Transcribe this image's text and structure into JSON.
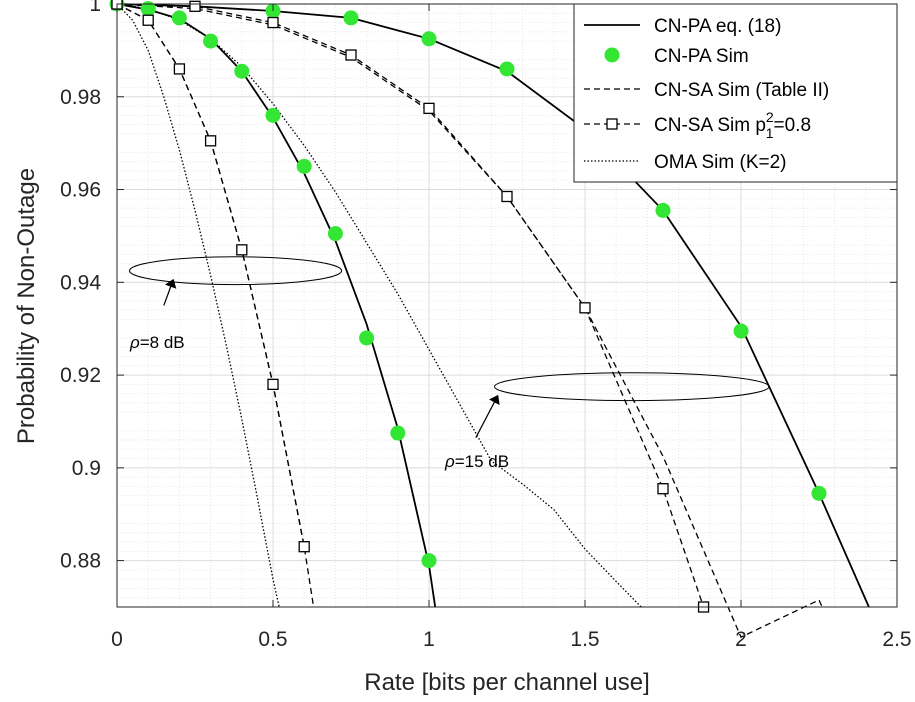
{
  "chart_data": {
    "type": "line",
    "xlabel": "Rate [bits per channel use]",
    "ylabel": "Probability of Non-Outage",
    "xlim": [
      0,
      2.5
    ],
    "ylim": [
      0.87,
      1.0
    ],
    "xticks": [
      0,
      0.5,
      1,
      1.5,
      2,
      2.5
    ],
    "xtick_labels": [
      "0",
      "0.5",
      "1",
      "1.5",
      "2",
      "2.5"
    ],
    "yticks": [
      0.88,
      0.9,
      0.92,
      0.94,
      0.96,
      0.98,
      1.0
    ],
    "ytick_labels": [
      "0.88",
      "0.9",
      "0.92",
      "0.94",
      "0.96",
      "0.98",
      "1"
    ],
    "grid": true,
    "minor_grid": true,
    "legend_position": "top-right",
    "legend": [
      {
        "label": "CN-PA eq. (18)",
        "style": "solid"
      },
      {
        "label": "CN-PA Sim",
        "style": "marker-circle",
        "color": "#33e633"
      },
      {
        "label": "CN-SA Sim (Table II)",
        "style": "dashed"
      },
      {
        "label_main": "CN-SA Sim p",
        "label_sup": "2",
        "label_sub": "1",
        "label_tail": "=0.8",
        "style": "dashed-square"
      },
      {
        "label": "OMA Sim (K=2)",
        "style": "dotted"
      }
    ],
    "series": [
      {
        "group": "rho=8 dB",
        "kind": "CN-PA eq. (18)",
        "style": "solid",
        "x": [
          0,
          0.1,
          0.2,
          0.3,
          0.4,
          0.5,
          0.6,
          0.7,
          0.8,
          0.9,
          1.0,
          1.02
        ],
        "y": [
          1.0,
          0.9988,
          0.9968,
          0.9925,
          0.9855,
          0.9755,
          0.9635,
          0.949,
          0.931,
          0.9085,
          0.879,
          0.87
        ]
      },
      {
        "group": "rho=8 dB",
        "kind": "CN-PA Sim",
        "style": "marker-circle",
        "x": [
          0,
          0.1,
          0.2,
          0.3,
          0.4,
          0.5,
          0.6,
          0.7,
          0.8,
          0.9,
          1.0
        ],
        "y": [
          1.0,
          0.999,
          0.997,
          0.992,
          0.9855,
          0.976,
          0.965,
          0.9505,
          0.928,
          0.9075,
          0.88
        ]
      },
      {
        "group": "rho=8 dB",
        "kind": "CN-SA Sim (Table II)",
        "style": "dashed",
        "x": [
          0,
          0.1,
          0.2,
          0.3,
          0.4,
          0.5,
          0.6,
          0.63
        ],
        "y": [
          1.0,
          0.9965,
          0.986,
          0.9705,
          0.947,
          0.918,
          0.883,
          0.87
        ]
      },
      {
        "group": "rho=8 dB",
        "kind": "CN-SA Sim p_1^2=0.8",
        "style": "dashed-square",
        "x": [
          0,
          0.1,
          0.2,
          0.3,
          0.4,
          0.5,
          0.6
        ],
        "y": [
          1.0,
          0.9965,
          0.986,
          0.9705,
          0.947,
          0.918,
          0.883
        ]
      },
      {
        "group": "rho=8 dB",
        "kind": "OMA Sim (K=2)",
        "style": "dotted",
        "x": [
          0,
          0.05,
          0.1,
          0.15,
          0.2,
          0.25,
          0.3,
          0.35,
          0.4,
          0.45,
          0.5,
          0.52
        ],
        "y": [
          1.0,
          0.9965,
          0.99,
          0.98,
          0.9685,
          0.9555,
          0.9415,
          0.9265,
          0.9105,
          0.8935,
          0.876,
          0.87
        ]
      },
      {
        "group": "rho=15 dB",
        "kind": "CN-PA eq. (18)",
        "style": "solid",
        "x": [
          0,
          0.25,
          0.5,
          0.75,
          1.0,
          1.25,
          1.5,
          1.75,
          2.0,
          2.25,
          2.41
        ],
        "y": [
          1.0,
          0.9995,
          0.9985,
          0.997,
          0.9925,
          0.9855,
          0.973,
          0.9555,
          0.9305,
          0.8945,
          0.87
        ]
      },
      {
        "group": "rho=15 dB",
        "kind": "CN-PA Sim",
        "style": "marker-circle",
        "x": [
          0.5,
          0.75,
          1.0,
          1.25,
          1.75,
          2.0,
          2.25
        ],
        "y": [
          0.9985,
          0.997,
          0.9925,
          0.986,
          0.9555,
          0.9295,
          0.8945
        ]
      },
      {
        "group": "rho=15 dB",
        "kind": "CN-SA Sim (Table II)",
        "style": "dashed",
        "x": [
          0,
          0.25,
          0.5,
          0.75,
          1.0,
          1.25,
          1.5,
          1.75,
          2.0,
          2.25,
          2.26
        ],
        "y": [
          1.0,
          0.999,
          0.9955,
          0.9885,
          0.977,
          0.9585,
          0.9345,
          0.9025,
          0.8635,
          0.8715,
          0.87
        ]
      },
      {
        "group": "rho=15 dB",
        "kind": "CN-SA Sim p_1^2=0.8",
        "style": "dashed-square",
        "x": [
          0,
          0.25,
          0.5,
          0.75,
          1.0,
          1.25,
          1.5,
          1.75,
          1.88
        ],
        "y": [
          1.0,
          0.9995,
          0.996,
          0.989,
          0.9775,
          0.9585,
          0.9345,
          0.8955,
          0.87
        ]
      },
      {
        "group": "rho=15 dB",
        "kind": "OMA Sim (K=2)",
        "style": "dotted",
        "x": [
          0,
          0.1,
          0.2,
          0.3,
          0.4,
          0.5,
          0.6,
          0.7,
          0.8,
          0.9,
          1.0,
          1.1,
          1.2,
          1.3,
          1.4,
          1.5,
          1.6,
          1.68
        ],
        "y": [
          1.0,
          0.999,
          0.9965,
          0.9925,
          0.9865,
          0.9785,
          0.9695,
          0.9595,
          0.9485,
          0.9375,
          0.9255,
          0.9135,
          0.9015,
          0.8965,
          0.891,
          0.8825,
          0.8755,
          0.87
        ]
      }
    ],
    "annotations": [
      {
        "text_rho": "ρ",
        "text_rest": "=8 dB",
        "ellipse": {
          "cx": 0.38,
          "cy": 0.9425,
          "rx": 0.34,
          "ry": 0.003
        },
        "arrow_from": [
          0.15,
          0.935
        ],
        "arrow_to": [
          0.18,
          0.9405
        ]
      },
      {
        "text_rho": "ρ",
        "text_rest": "=15 dB",
        "ellipse": {
          "cx": 1.65,
          "cy": 0.9175,
          "rx": 0.44,
          "ry": 0.003
        },
        "arrow_from": [
          1.15,
          0.9065
        ],
        "arrow_to": [
          1.22,
          0.9155
        ]
      }
    ]
  }
}
